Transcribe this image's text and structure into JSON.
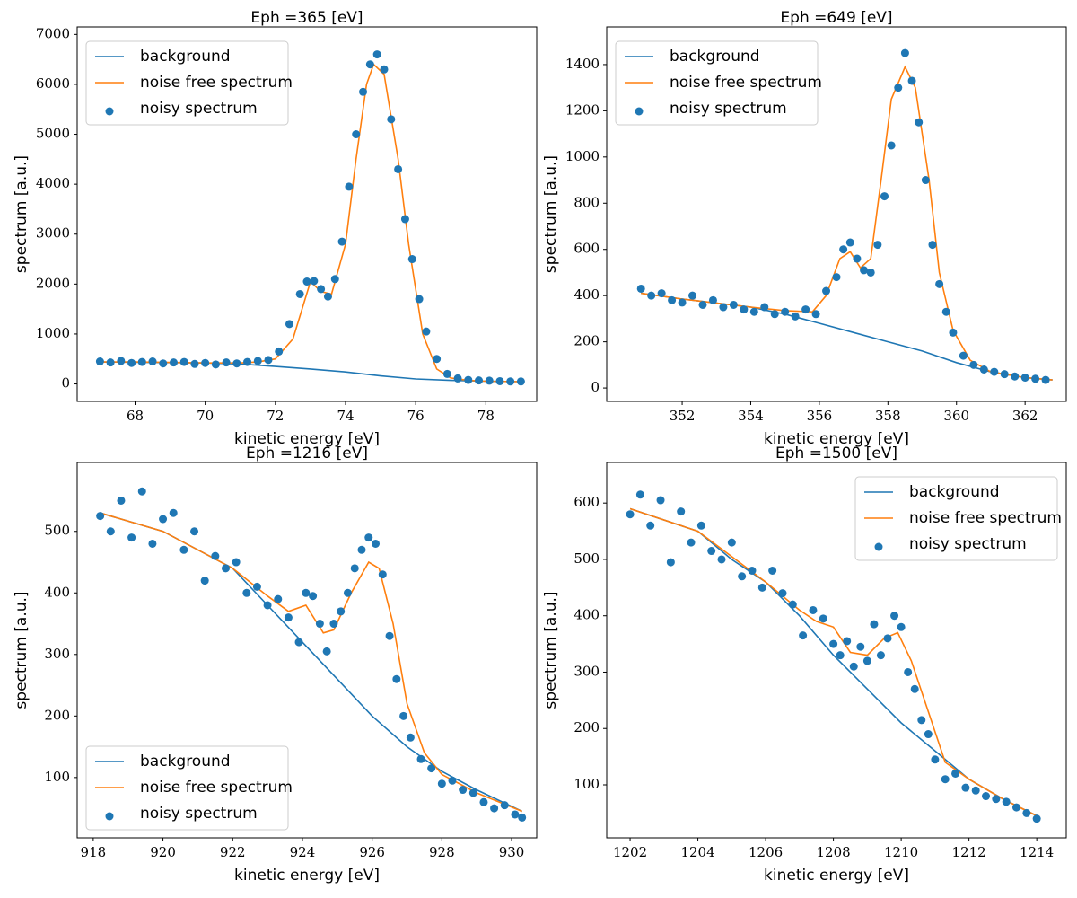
{
  "chart_data": [
    {
      "type": "line",
      "title": "Eph =365 [eV]",
      "x_label": "kinetic energy [eV]",
      "y_label": "spectrum [a.u.]",
      "xlim": [
        66.35,
        79.45
      ],
      "ylim": [
        -350,
        7150
      ],
      "xticks": [
        68,
        70,
        72,
        74,
        76,
        78
      ],
      "yticks": [
        0,
        1000,
        2000,
        3000,
        4000,
        5000,
        6000,
        7000
      ],
      "legend": "upper left",
      "series": [
        {
          "name": "background",
          "color": "#1f77b4",
          "kind": "line",
          "x": [
            67,
            70,
            71,
            72,
            73,
            74,
            75,
            76,
            77,
            78,
            79
          ],
          "values": [
            440,
            420,
            400,
            350,
            300,
            240,
            160,
            100,
            70,
            55,
            45
          ]
        },
        {
          "name": "noise free spectrum",
          "color": "#ff7f0e",
          "kind": "line",
          "x": [
            67,
            68,
            69,
            70,
            71,
            71.5,
            72,
            72.5,
            73,
            73.3,
            73.6,
            74,
            74.3,
            74.6,
            74.8,
            75.1,
            75.5,
            75.8,
            76.2,
            76.6,
            77,
            77.5,
            78,
            79
          ],
          "values": [
            440,
            440,
            430,
            420,
            420,
            440,
            500,
            900,
            2050,
            1850,
            1800,
            2800,
            4500,
            6000,
            6400,
            6200,
            4500,
            2800,
            1000,
            300,
            120,
            70,
            55,
            45
          ]
        },
        {
          "name": "noisy spectrum",
          "color": "#1f77b4",
          "kind": "scatter",
          "x": [
            67,
            67.3,
            67.6,
            67.9,
            68.2,
            68.5,
            68.8,
            69.1,
            69.4,
            69.7,
            70,
            70.3,
            70.6,
            70.9,
            71.2,
            71.5,
            71.8,
            72.1,
            72.4,
            72.7,
            72.9,
            73.1,
            73.3,
            73.5,
            73.7,
            73.9,
            74.1,
            74.3,
            74.5,
            74.7,
            74.9,
            75.1,
            75.3,
            75.5,
            75.7,
            75.9,
            76.1,
            76.3,
            76.6,
            76.9,
            77.2,
            77.5,
            77.8,
            78.1,
            78.4,
            78.7,
            79
          ],
          "values": [
            450,
            430,
            460,
            420,
            440,
            450,
            410,
            430,
            440,
            400,
            420,
            390,
            430,
            410,
            440,
            460,
            480,
            650,
            1200,
            1800,
            2050,
            2060,
            1900,
            1750,
            2100,
            2850,
            3950,
            5000,
            5850,
            6400,
            6600,
            6300,
            5300,
            4300,
            3300,
            2500,
            1700,
            1050,
            500,
            200,
            110,
            80,
            70,
            65,
            55,
            50,
            50
          ]
        }
      ]
    },
    {
      "type": "line",
      "title": "Eph =649 [eV]",
      "x_label": "kinetic energy [eV]",
      "y_label": "spectrum [a.u.]",
      "xlim": [
        349.8,
        363.2
      ],
      "ylim": [
        -58,
        1563
      ],
      "xticks": [
        352,
        354,
        356,
        358,
        360,
        362
      ],
      "yticks": [
        0,
        200,
        400,
        600,
        800,
        1000,
        1200,
        1400
      ],
      "legend": "upper left",
      "series": [
        {
          "name": "background",
          "color": "#1f77b4",
          "kind": "line",
          "x": [
            350.8,
            352,
            354,
            355,
            356,
            357,
            358,
            359,
            360,
            361,
            362,
            362.8
          ],
          "values": [
            410,
            385,
            350,
            320,
            280,
            240,
            200,
            160,
            110,
            70,
            45,
            35
          ]
        },
        {
          "name": "noise free spectrum",
          "color": "#ff7f0e",
          "kind": "line",
          "x": [
            350.8,
            352,
            354,
            355,
            355.8,
            356.2,
            356.6,
            356.9,
            357.2,
            357.5,
            357.8,
            358.1,
            358.5,
            358.8,
            359.2,
            359.5,
            359.9,
            360.4,
            361,
            362,
            362.8
          ],
          "values": [
            410,
            385,
            350,
            335,
            330,
            400,
            560,
            590,
            520,
            560,
            900,
            1250,
            1390,
            1300,
            900,
            500,
            250,
            120,
            70,
            45,
            35
          ]
        },
        {
          "name": "noisy spectrum",
          "color": "#1f77b4",
          "kind": "scatter",
          "x": [
            350.8,
            351.1,
            351.4,
            351.7,
            352,
            352.3,
            352.6,
            352.9,
            353.2,
            353.5,
            353.8,
            354.1,
            354.4,
            354.7,
            355,
            355.3,
            355.6,
            355.9,
            356.2,
            356.5,
            356.7,
            356.9,
            357.1,
            357.3,
            357.5,
            357.7,
            357.9,
            358.1,
            358.3,
            358.5,
            358.7,
            358.9,
            359.1,
            359.3,
            359.5,
            359.7,
            359.9,
            360.2,
            360.5,
            360.8,
            361.1,
            361.4,
            361.7,
            362,
            362.3,
            362.6
          ],
          "values": [
            430,
            400,
            410,
            380,
            370,
            400,
            360,
            380,
            350,
            360,
            340,
            330,
            350,
            320,
            330,
            310,
            340,
            320,
            420,
            480,
            600,
            630,
            560,
            510,
            500,
            620,
            830,
            1050,
            1300,
            1450,
            1330,
            1150,
            900,
            620,
            450,
            330,
            240,
            140,
            100,
            80,
            70,
            60,
            50,
            45,
            40,
            35
          ]
        }
      ]
    },
    {
      "type": "line",
      "title": "Eph =1216 [eV]",
      "x_label": "kinetic energy [eV]",
      "y_label": "spectrum [a.u.]",
      "xlim": [
        917.54,
        930.72
      ],
      "ylim": [
        2,
        612
      ],
      "xticks": [
        918,
        920,
        922,
        924,
        926,
        928,
        930
      ],
      "yticks": [
        100,
        200,
        300,
        400,
        500
      ],
      "legend": "lower left",
      "series": [
        {
          "name": "background",
          "color": "#1f77b4",
          "kind": "line",
          "x": [
            918.2,
            920,
            922,
            923,
            924,
            925,
            926,
            927,
            928,
            929,
            930.3
          ],
          "values": [
            530,
            500,
            440,
            380,
            320,
            260,
            200,
            150,
            110,
            80,
            45
          ]
        },
        {
          "name": "noise free spectrum",
          "color": "#ff7f0e",
          "kind": "line",
          "x": [
            918.2,
            920,
            922,
            923,
            923.6,
            924.1,
            924.6,
            924.9,
            925.4,
            925.9,
            926.2,
            926.6,
            927,
            927.5,
            928,
            929,
            930.3
          ],
          "values": [
            530,
            500,
            440,
            395,
            370,
            380,
            335,
            340,
            400,
            450,
            440,
            350,
            220,
            140,
            105,
            75,
            45
          ]
        },
        {
          "name": "noisy spectrum",
          "color": "#1f77b4",
          "kind": "scatter",
          "x": [
            918.2,
            918.5,
            918.8,
            919.1,
            919.4,
            919.7,
            920,
            920.3,
            920.6,
            920.9,
            921.2,
            921.5,
            921.8,
            922.1,
            922.4,
            922.7,
            923,
            923.3,
            923.6,
            923.9,
            924.1,
            924.3,
            924.5,
            924.7,
            924.9,
            925.1,
            925.3,
            925.5,
            925.7,
            925.9,
            926.1,
            926.3,
            926.5,
            926.7,
            926.9,
            927.1,
            927.4,
            927.7,
            928,
            928.3,
            928.6,
            928.9,
            929.2,
            929.5,
            929.8,
            930.1,
            930.3
          ],
          "values": [
            525,
            500,
            550,
            490,
            565,
            480,
            520,
            530,
            470,
            500,
            420,
            460,
            440,
            450,
            400,
            410,
            380,
            390,
            360,
            320,
            400,
            395,
            350,
            305,
            350,
            370,
            400,
            440,
            470,
            490,
            480,
            430,
            330,
            260,
            200,
            165,
            130,
            115,
            90,
            95,
            80,
            75,
            60,
            50,
            55,
            40,
            35
          ]
        }
      ]
    },
    {
      "type": "line",
      "title": "Eph =1500 [eV]",
      "x_label": "kinetic energy [eV]",
      "y_label": "spectrum [a.u.]",
      "xlim": [
        1201.31,
        1214.87
      ],
      "ylim": [
        6,
        672
      ],
      "xticks": [
        1202,
        1204,
        1206,
        1208,
        1210,
        1212,
        1214
      ],
      "yticks": [
        100,
        200,
        300,
        400,
        500,
        600
      ],
      "legend": "upper right",
      "series": [
        {
          "name": "background",
          "color": "#1f77b4",
          "kind": "line",
          "x": [
            1202,
            1204,
            1205,
            1206,
            1207,
            1208,
            1209,
            1210,
            1211,
            1212,
            1213,
            1214
          ],
          "values": [
            590,
            550,
            500,
            460,
            400,
            330,
            270,
            210,
            160,
            110,
            75,
            45
          ]
        },
        {
          "name": "noise free spectrum",
          "color": "#ff7f0e",
          "kind": "line",
          "x": [
            1202,
            1204,
            1206,
            1207,
            1207.5,
            1208,
            1208.5,
            1209,
            1209.5,
            1209.9,
            1210.3,
            1210.8,
            1211.3,
            1212,
            1213,
            1214
          ],
          "values": [
            590,
            550,
            460,
            410,
            390,
            380,
            335,
            330,
            360,
            370,
            320,
            230,
            140,
            110,
            75,
            45
          ]
        },
        {
          "name": "noisy spectrum",
          "color": "#1f77b4",
          "kind": "scatter",
          "x": [
            1202,
            1202.3,
            1202.6,
            1202.9,
            1203.2,
            1203.5,
            1203.8,
            1204.1,
            1204.4,
            1204.7,
            1205,
            1205.3,
            1205.6,
            1205.9,
            1206.2,
            1206.5,
            1206.8,
            1207.1,
            1207.4,
            1207.7,
            1208,
            1208.2,
            1208.4,
            1208.6,
            1208.8,
            1209,
            1209.2,
            1209.4,
            1209.6,
            1209.8,
            1210,
            1210.2,
            1210.4,
            1210.6,
            1210.8,
            1211,
            1211.3,
            1211.6,
            1211.9,
            1212.2,
            1212.5,
            1212.8,
            1213.1,
            1213.4,
            1213.7,
            1214
          ],
          "values": [
            580,
            615,
            560,
            605,
            495,
            585,
            530,
            560,
            515,
            500,
            530,
            470,
            480,
            450,
            480,
            440,
            420,
            365,
            410,
            395,
            350,
            330,
            355,
            310,
            345,
            320,
            385,
            330,
            360,
            400,
            380,
            300,
            270,
            215,
            190,
            145,
            110,
            120,
            95,
            90,
            80,
            75,
            70,
            60,
            50,
            40
          ]
        }
      ]
    }
  ]
}
